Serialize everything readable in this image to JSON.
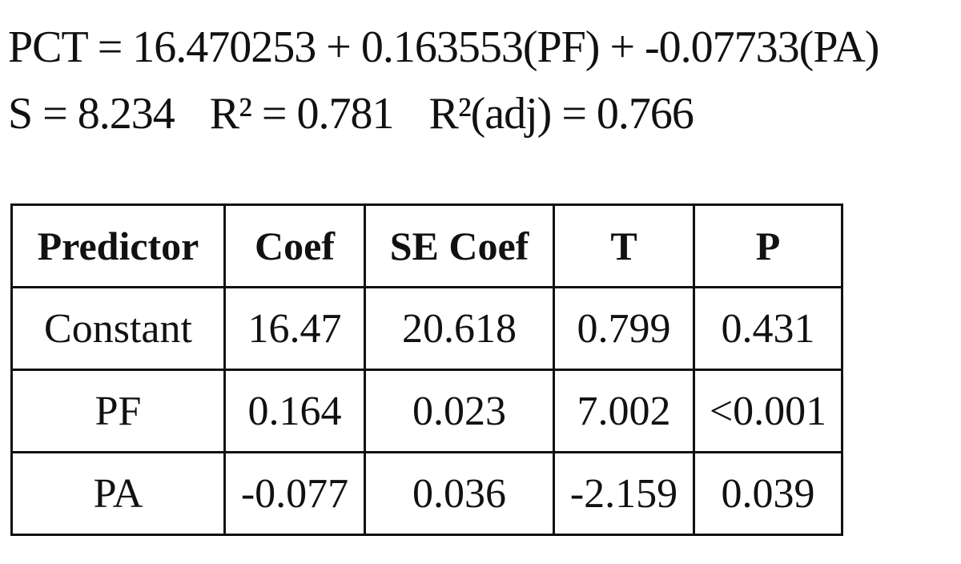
{
  "equation": "PCT = 16.470253 + 0.163553(PF) + -0.07733(PA)",
  "stats": {
    "s": "S = 8.234",
    "r2": "R² = 0.781",
    "r2adj": "R²(adj) = 0.766"
  },
  "table": {
    "headers": [
      "Predictor",
      "Coef",
      "SE Coef",
      "T",
      "P"
    ],
    "rows": [
      [
        "Constant",
        "16.47",
        "20.618",
        "0.799",
        "0.431"
      ],
      [
        "PF",
        "0.164",
        "0.023",
        "7.002",
        "<0.001"
      ],
      [
        "PA",
        "-0.077",
        "0.036",
        "-2.159",
        "0.039"
      ]
    ]
  }
}
